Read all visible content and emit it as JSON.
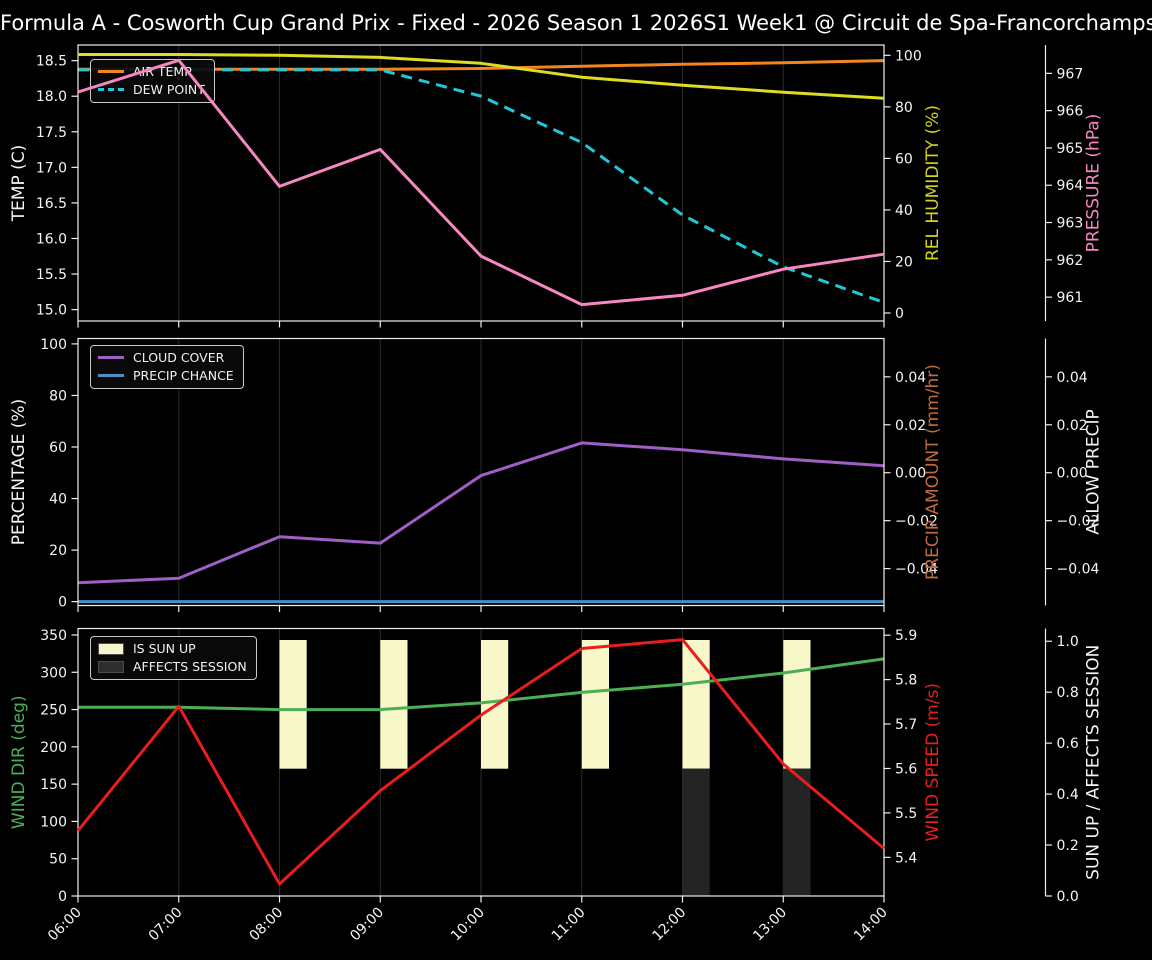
{
  "title": "Formula A - Cosworth Cup Grand Prix - Fixed - 2026 Season 1 2026S1 Week1 @ Circuit de Spa-Francorchamps",
  "colors": {
    "background": "#000000",
    "spine": "#efefef",
    "grid": "#2b2b2b",
    "tick_text": "#f5f5f5"
  },
  "chart_data": {
    "type": "line",
    "x": {
      "hours": [
        6,
        7,
        8,
        9,
        10,
        11,
        12,
        13,
        14
      ],
      "tick_labels": [
        "06:00",
        "07:00",
        "08:00",
        "09:00",
        "10:00",
        "11:00",
        "12:00",
        "13:00",
        "14:00"
      ],
      "label_rotation_deg": -45
    },
    "panels": [
      {
        "id": "temperature",
        "axes": {
          "left": {
            "label": "TEMP (C)",
            "label_color": "#f5f5f5",
            "range": [
              14.84,
              18.72
            ],
            "ticks": [
              15.0,
              15.5,
              16.0,
              16.5,
              17.0,
              17.5,
              18.0,
              18.5
            ],
            "tick_labels": [
              "15.0",
              "15.5",
              "16.0",
              "16.5",
              "17.0",
              "17.5",
              "18.0",
              "18.5"
            ]
          },
          "right1": {
            "label": "REL HUMIDITY (%)",
            "label_color": "#d4d41a",
            "range": [
              -3.1,
              104.0
            ],
            "ticks": [
              0,
              20,
              40,
              60,
              80,
              100
            ],
            "tick_labels": [
              "0",
              "20",
              "40",
              "60",
              "80",
              "100"
            ]
          },
          "right2": {
            "label": "PRESSURE (hPa)",
            "label_color": "#f687c1",
            "range": [
              960.36,
              967.76
            ],
            "ticks": [
              961,
              962,
              963,
              964,
              965,
              966,
              967
            ],
            "tick_labels": [
              "961",
              "962",
              "963",
              "964",
              "965",
              "966",
              "967"
            ]
          }
        },
        "legend": [
          {
            "name": "air-temp-swatch",
            "label": "AIR TEMP",
            "color": "#f28522",
            "type": "line"
          },
          {
            "name": "dew-point-swatch",
            "label": "DEW POINT",
            "color": "#1fc8d9",
            "type": "dashed-line"
          }
        ],
        "series": [
          {
            "name": "air-temp",
            "axis": "left",
            "color": "#f28522",
            "dashed": false,
            "values": [
              18.38,
              18.38,
              18.38,
              18.38,
              18.39,
              18.42,
              18.45,
              18.47,
              18.5
            ]
          },
          {
            "name": "dew-point",
            "axis": "left",
            "color": "#1fc8d9",
            "dashed": true,
            "values": [
              18.37,
              18.37,
              18.37,
              18.37,
              18.0,
              17.35,
              16.33,
              15.6,
              15.1
            ]
          },
          {
            "name": "rel-humidity",
            "axis": "right1",
            "color": "#dedc20",
            "dashed": false,
            "values": [
              100.3,
              100.3,
              100.0,
              99.2,
              96.9,
              91.5,
              88.4,
              85.7,
              83.3
            ]
          },
          {
            "name": "pressure",
            "axis": "right2",
            "color": "#f687c1",
            "dashed": false,
            "values": [
              966.5,
              967.35,
              963.97,
              964.96,
              962.1,
              960.8,
              961.05,
              961.75,
              962.15
            ]
          }
        ],
        "bars": []
      },
      {
        "id": "precipitation",
        "axes": {
          "left": {
            "label": "PERCENTAGE (%)",
            "label_color": "#f5f5f5",
            "range": [
              -1.5,
              102.1
            ],
            "ticks": [
              0,
              20,
              40,
              60,
              80,
              100
            ],
            "tick_labels": [
              "0",
              "20",
              "40",
              "60",
              "80",
              "100"
            ]
          },
          "right1": {
            "label": "PRECIP AMOUNT (mm/hr)",
            "label_color": "#c06a3d",
            "range": [
              -0.0554,
              0.056
            ],
            "ticks": [
              -0.04,
              -0.02,
              0.0,
              0.02,
              0.04
            ],
            "tick_labels": [
              "−0.04",
              "−0.02",
              "0.00",
              "0.02",
              "0.04"
            ]
          },
          "right2": {
            "label": "ALLOW PRECIP",
            "label_color": "#f5f5f5",
            "range": [
              -0.0554,
              0.056
            ],
            "ticks": [
              -0.04,
              -0.02,
              0.0,
              0.02,
              0.04
            ],
            "tick_labels": [
              "−0.04",
              "−0.02",
              "0.00",
              "0.02",
              "0.04"
            ]
          }
        },
        "legend": [
          {
            "name": "cloud-cover-swatch",
            "label": "CLOUD COVER",
            "color": "#a05fc4",
            "type": "line"
          },
          {
            "name": "precip-chance-swatch",
            "label": "PRECIP CHANCE",
            "color": "#4a8fc7",
            "type": "line"
          }
        ],
        "series": [
          {
            "name": "cloud-cover",
            "axis": "left",
            "color": "#a05fc4",
            "dashed": false,
            "values": [
              7.3,
              9.1,
              25.2,
              22.7,
              48.9,
              61.6,
              58.9,
              55.4,
              52.7
            ]
          },
          {
            "name": "precip-chance",
            "axis": "left",
            "color": "#4a8fc7",
            "dashed": false,
            "values": [
              0,
              0,
              0,
              0,
              0,
              0,
              0,
              0,
              0
            ]
          }
        ],
        "bars": []
      },
      {
        "id": "wind",
        "axes": {
          "left": {
            "label": "WIND DIR (deg)",
            "label_color": "#4caf53",
            "range": [
              0,
              358.7
            ],
            "ticks": [
              0,
              50,
              100,
              150,
              200,
              250,
              300,
              350
            ],
            "tick_labels": [
              "0",
              "50",
              "100",
              "150",
              "200",
              "250",
              "300",
              "350"
            ]
          },
          "right1": {
            "label": "WIND SPEED (m/s)",
            "label_color": "#ea1d1d",
            "range": [
              5.313,
              5.915
            ],
            "ticks": [
              5.4,
              5.5,
              5.6,
              5.7,
              5.8,
              5.9
            ],
            "tick_labels": [
              "5.4",
              "5.5",
              "5.6",
              "5.7",
              "5.8",
              "5.9"
            ]
          },
          "right2": {
            "label": "SUN UP / AFFECTS SESSION",
            "label_color": "#f5f5f5",
            "range": [
              0,
              1.05
            ],
            "ticks": [
              0.0,
              0.2,
              0.4,
              0.6,
              0.8,
              1.0
            ],
            "tick_labels": [
              "0.0",
              "0.2",
              "0.4",
              "0.6",
              "0.8",
              "1.0"
            ]
          }
        },
        "legend": [
          {
            "name": "is-sun-up-swatch",
            "label": "IS SUN UP",
            "color": "#f7f7c9",
            "type": "patch"
          },
          {
            "name": "affects-session-swatch",
            "label": "AFFECTS SESSION",
            "color": "#2e2e2e",
            "type": "patch"
          }
        ],
        "series": [
          {
            "name": "wind-dir",
            "axis": "left",
            "color": "#4caf53",
            "dashed": false,
            "values": [
              253,
              253,
              250,
              250,
              259,
              273,
              284,
              299,
              318
            ]
          },
          {
            "name": "wind-speed",
            "axis": "right1",
            "color": "#ea1d1d",
            "dashed": false,
            "values": [
              5.46,
              5.74,
              5.34,
              5.55,
              5.72,
              5.87,
              5.89,
              5.61,
              5.42
            ]
          }
        ],
        "bars": [
          {
            "name": "is-sun-up",
            "axis": "right2",
            "color": "#f7f7c9",
            "from": 0.5,
            "to": 1.005,
            "at_hours": [
              8,
              9,
              10,
              11,
              12,
              13
            ],
            "width_hours": 0.27
          },
          {
            "name": "affects-session",
            "axis": "right2",
            "color": "#242424",
            "from": 0.0,
            "to": 0.5,
            "at_hours": [
              12,
              13
            ],
            "width_hours": 0.27
          }
        ]
      }
    ]
  }
}
